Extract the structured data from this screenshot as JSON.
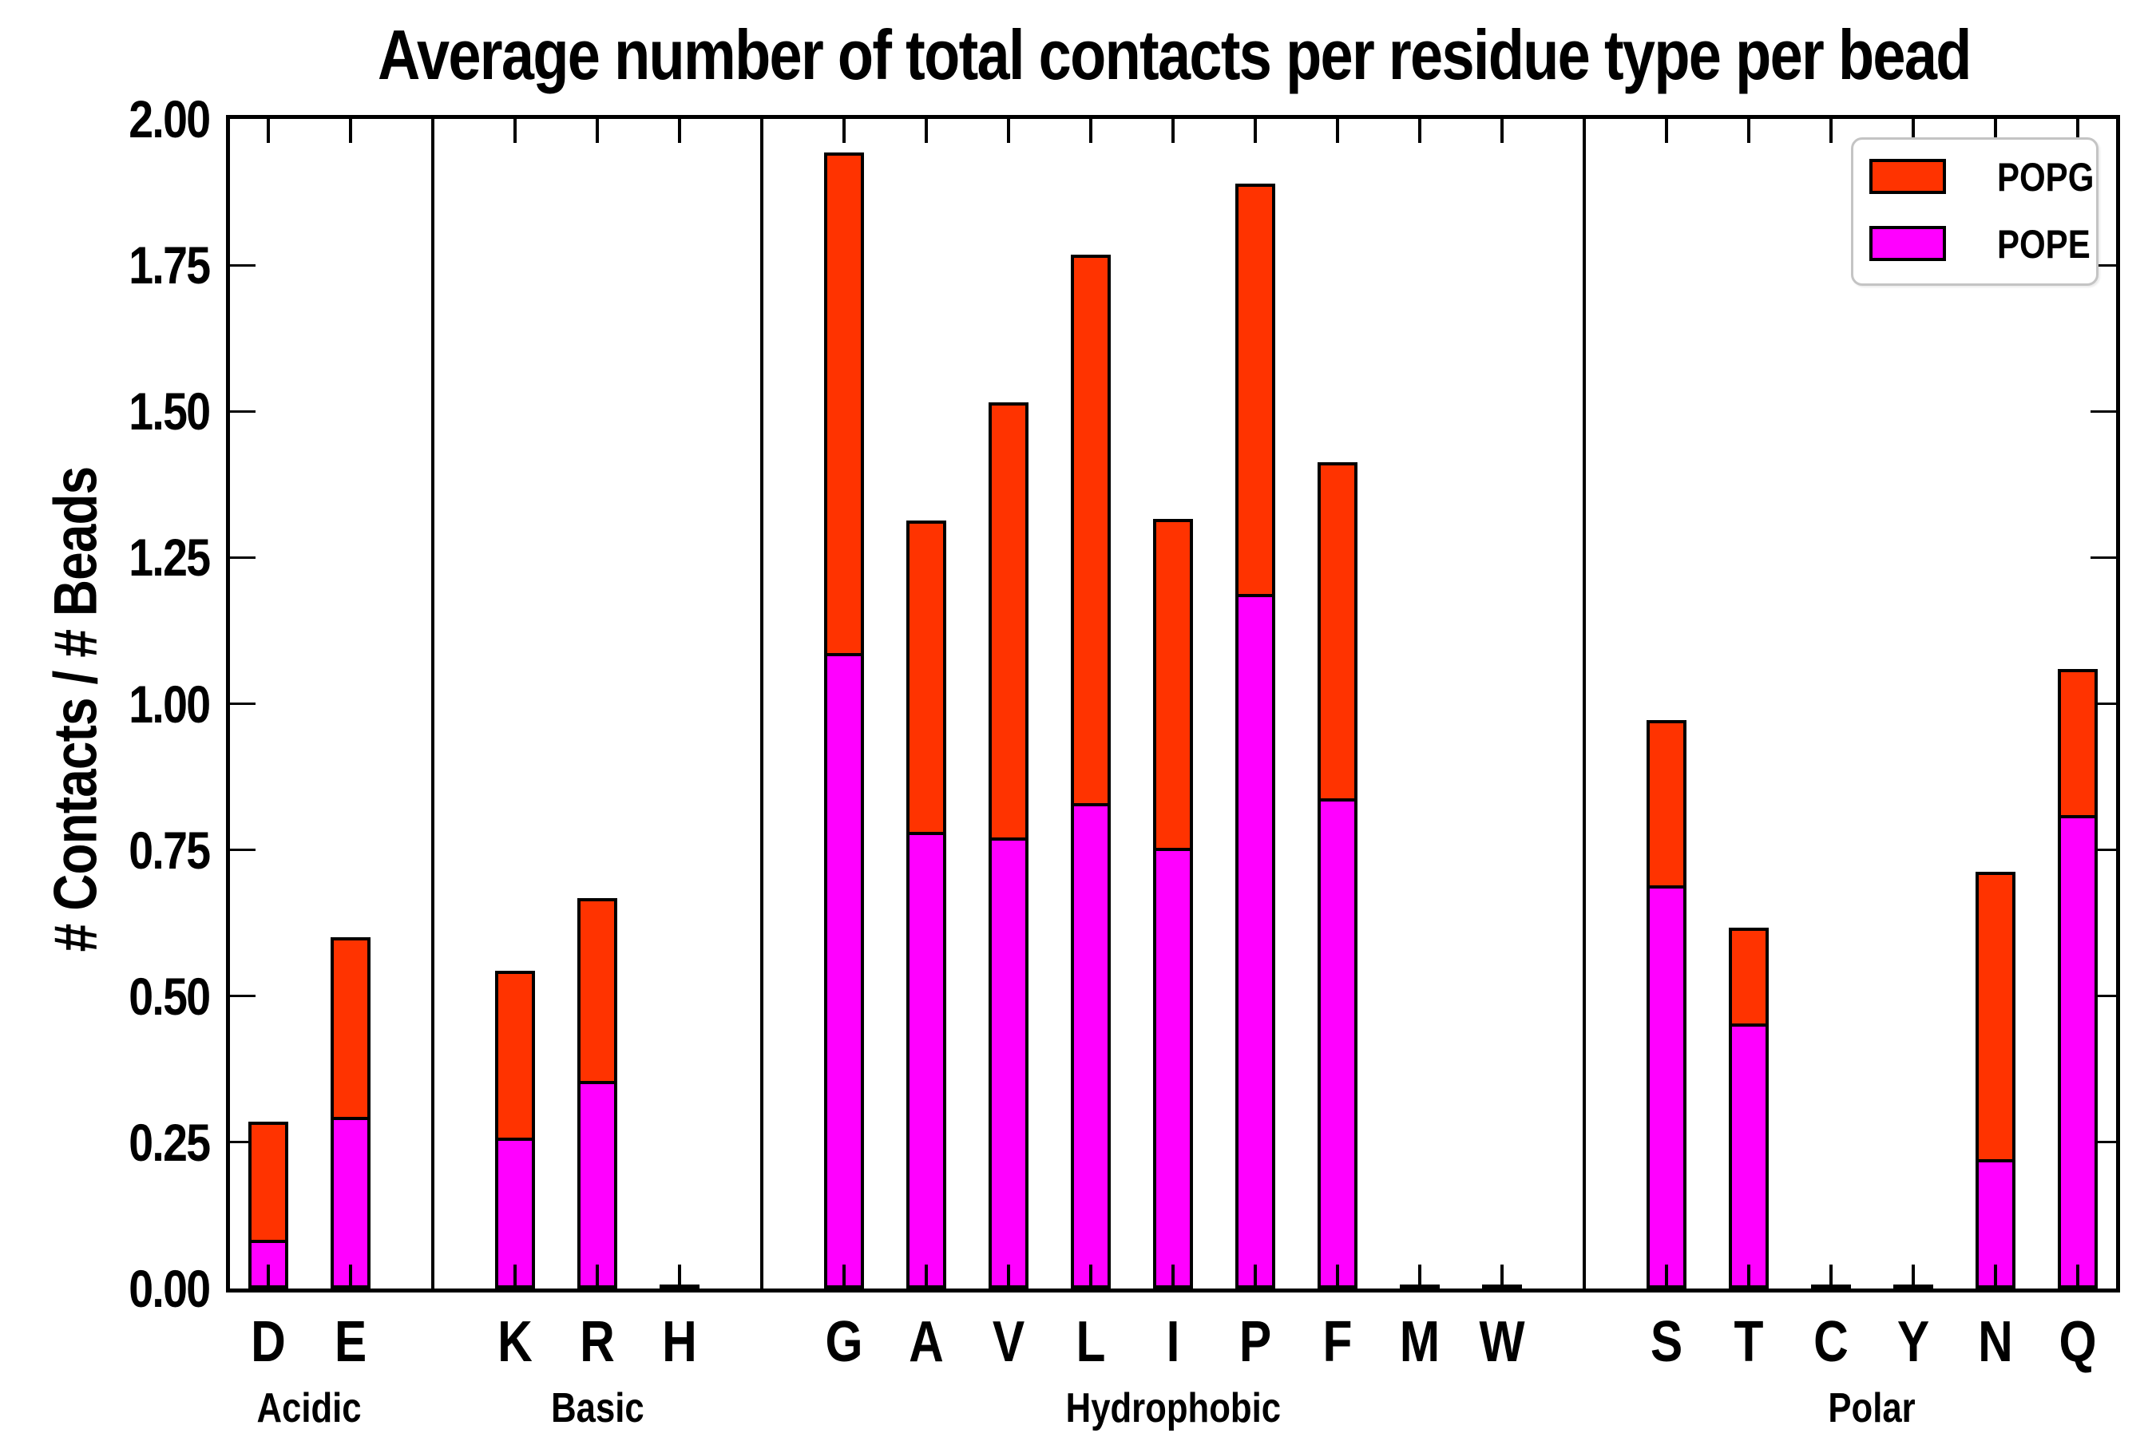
{
  "title": "Average number of total contacts per residue type per bead",
  "y_axis": {
    "label": "# Contacts / # Beads",
    "min": 0,
    "max": 2,
    "tick_step": 0.25,
    "tick_labels": [
      "2.00",
      "1.75",
      "1.50",
      "1.25",
      "1.00",
      "0.75",
      "0.50",
      "0.25",
      "0.00"
    ]
  },
  "legend": {
    "items": [
      {
        "label": "POPG",
        "color": "#ff3300"
      },
      {
        "label": "POPE",
        "color": "#ff00ff"
      }
    ],
    "position": "upper right"
  },
  "chart_data": {
    "type": "bar",
    "stacked": true,
    "title": "Average number of total contacts per residue type per bead",
    "ylabel": "# Contacts / # Beads",
    "ylim": [
      0,
      2.0
    ],
    "ytick_step": 0.25,
    "grid": false,
    "legend_position": "upper right",
    "categories": [
      "D",
      "E",
      "K",
      "R",
      "H",
      "G",
      "A",
      "V",
      "L",
      "I",
      "P",
      "F",
      "M",
      "W",
      "S",
      "T",
      "C",
      "Y",
      "N",
      "Q"
    ],
    "groups": [
      {
        "label": "Acidic",
        "categories": [
          "D",
          "E"
        ]
      },
      {
        "label": "Basic",
        "categories": [
          "K",
          "R",
          "H"
        ]
      },
      {
        "label": "Hydrophobic",
        "categories": [
          "G",
          "A",
          "V",
          "L",
          "I",
          "P",
          "F",
          "M",
          "W"
        ]
      },
      {
        "label": "Polar",
        "categories": [
          "S",
          "T",
          "C",
          "Y",
          "N",
          "Q"
        ]
      }
    ],
    "series": [
      {
        "name": "POPE",
        "color": "#ff00ff",
        "values": [
          0.083,
          0.294,
          0.258,
          0.355,
          0.0,
          1.087,
          0.781,
          0.772,
          0.83,
          0.754,
          1.187,
          0.838,
          0.0,
          0.0,
          0.69,
          0.453,
          0.0,
          0.0,
          0.221,
          0.809
        ]
      },
      {
        "name": "POPG",
        "color": "#ff3300",
        "values": [
          0.202,
          0.307,
          0.286,
          0.313,
          0.0,
          0.856,
          0.532,
          0.744,
          0.938,
          0.562,
          0.702,
          0.575,
          0.0,
          0.0,
          0.282,
          0.164,
          0.0,
          0.0,
          0.491,
          0.25
        ]
      }
    ],
    "totals": [
      0.285,
      0.601,
      0.544,
      0.668,
      0.0,
      1.943,
      1.313,
      1.516,
      1.768,
      1.316,
      1.889,
      1.413,
      0.0,
      0.0,
      0.972,
      0.617,
      0.0,
      0.0,
      0.712,
      1.059
    ]
  }
}
